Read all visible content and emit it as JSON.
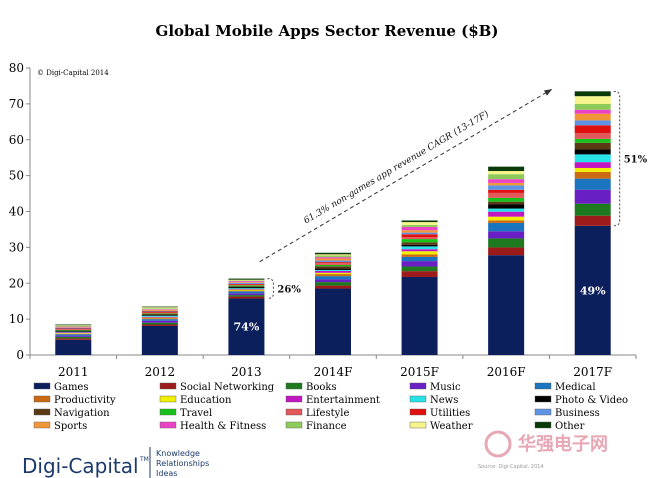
{
  "chart_data": {
    "type": "bar",
    "stacked": true,
    "title": "Global Mobile Apps Sector Revenue ($B)",
    "copyright": "© Digi-Capital 2014",
    "xlabel": "",
    "ylabel": "",
    "ylim": [
      0,
      80
    ],
    "yticks": [
      0,
      10,
      20,
      30,
      40,
      50,
      60,
      70,
      80
    ],
    "grid": false,
    "categories": [
      "2011",
      "2012",
      "2013",
      "2014F",
      "2015F",
      "2016F",
      "2017F"
    ],
    "totals": [
      8.5,
      13.5,
      21.3,
      28.5,
      37.5,
      52.5,
      73.5
    ],
    "games_share": [
      null,
      null,
      0.74,
      0.65,
      0.58,
      0.53,
      0.49
    ],
    "series": [
      {
        "name": "Games",
        "color": "#0b1f5c"
      },
      {
        "name": "Social Networking",
        "color": "#9c1a1a"
      },
      {
        "name": "Books",
        "color": "#1e7a1e"
      },
      {
        "name": "Music",
        "color": "#6a1fc4"
      },
      {
        "name": "Medical",
        "color": "#1b74c0"
      },
      {
        "name": "Productivity",
        "color": "#cc6a14"
      },
      {
        "name": "Education",
        "color": "#f2ef00"
      },
      {
        "name": "Entertainment",
        "color": "#c116c1"
      },
      {
        "name": "News",
        "color": "#27e3e8"
      },
      {
        "name": "Photo & Video",
        "color": "#000000"
      },
      {
        "name": "Navigation",
        "color": "#5a3a14"
      },
      {
        "name": "Travel",
        "color": "#16c21a"
      },
      {
        "name": "Lifestyle",
        "color": "#e35858"
      },
      {
        "name": "Utilities",
        "color": "#e01010"
      },
      {
        "name": "Business",
        "color": "#5e94e6"
      },
      {
        "name": "Sports",
        "color": "#f0973a"
      },
      {
        "name": "Health & Fitness",
        "color": "#ec42c8"
      },
      {
        "name": "Finance",
        "color": "#8fcb5b"
      },
      {
        "name": "Weather",
        "color": "#f6f48a"
      },
      {
        "name": "Other",
        "color": "#0a3a0a"
      }
    ],
    "annotations": {
      "pct_2013_games": "74%",
      "pct_2013_other": "26%",
      "pct_2017_games": "49%",
      "pct_2017_other": "51%",
      "cagr": "61.3% non-games app revenue CAGR (13-17F)"
    }
  },
  "footer": {
    "logo": "Digi-Capital",
    "tm": "TM",
    "tagline": [
      "Knowledge",
      "Relationships",
      "Ideas"
    ],
    "source": "Source: Digi-Capital, 2014",
    "watermark": "华强电子网"
  }
}
